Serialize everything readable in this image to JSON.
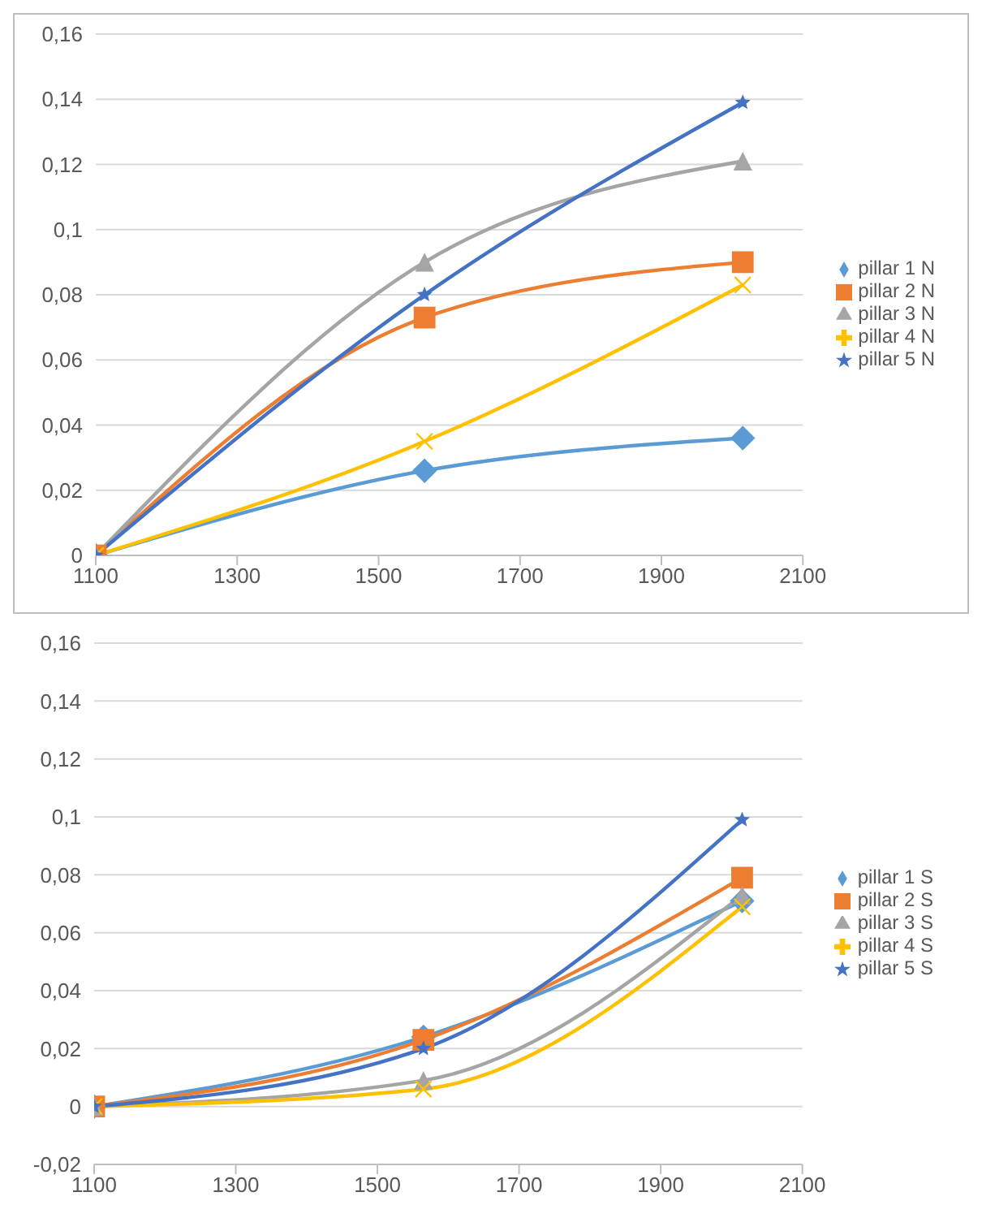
{
  "chart_data": [
    {
      "type": "line",
      "x": [
        1100,
        1565,
        2015
      ],
      "series": [
        {
          "name": "pillar 1 N",
          "color": "#5b9bd5",
          "marker": "diamond",
          "values": [
            0,
            0.026,
            0.036
          ]
        },
        {
          "name": "pillar 2 N",
          "color": "#ed7d31",
          "marker": "square",
          "values": [
            0,
            0.073,
            0.09
          ]
        },
        {
          "name": "pillar 3 N",
          "color": "#a5a5a5",
          "marker": "triangle",
          "values": [
            0,
            0.09,
            0.121
          ]
        },
        {
          "name": "pillar 4 N",
          "color": "#ffc000",
          "marker": "cross",
          "values": [
            0,
            0.035,
            0.083
          ]
        },
        {
          "name": "pillar 5 N",
          "color": "#4472c4",
          "marker": "star",
          "values": [
            0,
            0.08,
            0.139
          ]
        }
      ],
      "xlim": [
        1100,
        2100
      ],
      "xticks": [
        1100,
        1300,
        1500,
        1700,
        1900,
        2100
      ],
      "ylim": [
        0,
        0.16
      ],
      "yticks": [
        0,
        {
          "value": 0.02,
          "label": "0,02"
        },
        {
          "value": 0.04,
          "label": "0,04"
        },
        {
          "value": 0.06,
          "label": "0,06"
        },
        {
          "value": 0.08,
          "label": "0,08"
        },
        {
          "value": 0.1,
          "label": "0,1"
        },
        {
          "value": 0.12,
          "label": "0,12"
        },
        {
          "value": 0.14,
          "label": "0,14"
        },
        {
          "value": 0.16,
          "label": "0,16"
        }
      ],
      "grid": "y",
      "legend": "right"
    },
    {
      "type": "line",
      "x": [
        1100,
        1565,
        2015
      ],
      "series": [
        {
          "name": "pillar 1 S",
          "color": "#5b9bd5",
          "marker": "diamond",
          "values": [
            0,
            0.024,
            0.071
          ]
        },
        {
          "name": "pillar 2 S",
          "color": "#ed7d31",
          "marker": "square",
          "values": [
            0,
            0.023,
            0.079
          ]
        },
        {
          "name": "pillar 3 S",
          "color": "#a5a5a5",
          "marker": "triangle",
          "values": [
            0,
            0.009,
            0.073
          ]
        },
        {
          "name": "pillar 4 S",
          "color": "#ffc000",
          "marker": "cross",
          "values": [
            0,
            0.006,
            0.069
          ]
        },
        {
          "name": "pillar 5 S",
          "color": "#4472c4",
          "marker": "star",
          "values": [
            0,
            0.02,
            0.099
          ]
        }
      ],
      "xlim": [
        1100,
        2100
      ],
      "xticks": [
        1100,
        1300,
        1500,
        1700,
        1900,
        2100
      ],
      "ylim": [
        -0.02,
        0.16
      ],
      "yticks": [
        {
          "value": -0.02,
          "label": "-0,02"
        },
        0,
        {
          "value": 0.02,
          "label": "0,02"
        },
        {
          "value": 0.04,
          "label": "0,04"
        },
        {
          "value": 0.06,
          "label": "0,06"
        },
        {
          "value": 0.08,
          "label": "0,08"
        },
        {
          "value": 0.1,
          "label": "0,1"
        },
        {
          "value": 0.12,
          "label": "0,12"
        },
        {
          "value": 0.14,
          "label": "0,14"
        },
        {
          "value": 0.16,
          "label": "0,16"
        }
      ],
      "grid": "y",
      "legend": "right"
    }
  ]
}
